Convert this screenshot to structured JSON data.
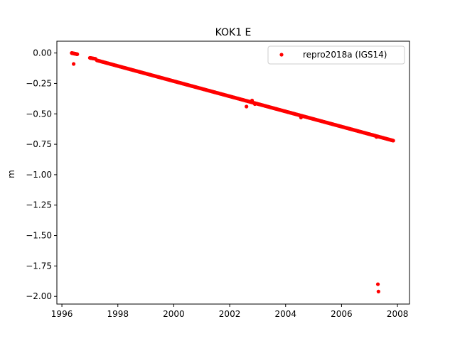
{
  "chart_data": {
    "type": "scatter",
    "title": "KOK1 E",
    "xlabel": "",
    "ylabel": "m",
    "xlim": [
      1995.82,
      2008.43
    ],
    "ylim": [
      -2.063,
      0.097
    ],
    "x_ticks": [
      1996,
      1998,
      2000,
      2002,
      2004,
      2006,
      2008
    ],
    "y_ticks": [
      0.0,
      -0.25,
      -0.5,
      -0.75,
      -1.0,
      -1.25,
      -1.5,
      -1.75,
      -2.0
    ],
    "y_tick_labels": [
      "0.00",
      "−0.25",
      "−0.50",
      "−0.75",
      "−1.00",
      "−1.25",
      "−1.50",
      "−1.75",
      "−2.00"
    ],
    "grid": false,
    "legend_position": "top-right",
    "series": [
      {
        "name": "repro2018a (IGS14)",
        "color": "#ff0000",
        "marker": "circle",
        "segments": [
          {
            "x_start": 1996.35,
            "x_end": 1996.55,
            "y_start": 0.0,
            "y_end": -0.01,
            "step": 0.01
          },
          {
            "x_start": 1997.0,
            "x_end": 1997.2,
            "y_start": -0.04,
            "y_end": -0.048,
            "step": 0.02
          },
          {
            "x_start": 1997.25,
            "x_end": 2007.85,
            "y_start": -0.06,
            "y_end": -0.72,
            "step": 0.02
          }
        ],
        "points": [
          {
            "x": 1996.42,
            "y": -0.09
          },
          {
            "x": 2002.6,
            "y": -0.44
          },
          {
            "x": 2002.8,
            "y": -0.39
          },
          {
            "x": 2002.9,
            "y": -0.42
          },
          {
            "x": 2004.55,
            "y": -0.53
          },
          {
            "x": 2007.25,
            "y": -0.69
          },
          {
            "x": 2007.3,
            "y": -1.9
          },
          {
            "x": 2007.32,
            "y": -1.96
          }
        ]
      }
    ]
  }
}
